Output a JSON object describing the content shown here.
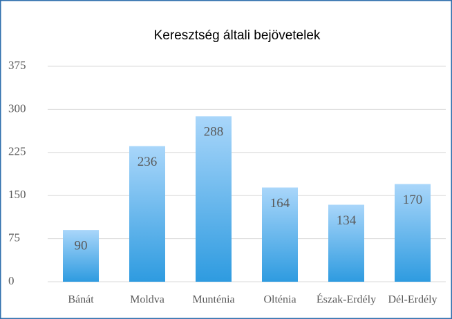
{
  "chart_data": {
    "type": "bar",
    "title": "Keresztség általi bejövetelek",
    "categories": [
      "Bánát",
      "Moldva",
      "Munténia",
      "Olténia",
      "Észak-Erdély",
      "Dél-Erdély"
    ],
    "values": [
      90,
      236,
      288,
      164,
      134,
      170
    ],
    "color": "#2e9be0",
    "ylim": [
      0,
      375
    ],
    "yticks": [
      0,
      75,
      150,
      225,
      300,
      375
    ],
    "grid": true
  }
}
